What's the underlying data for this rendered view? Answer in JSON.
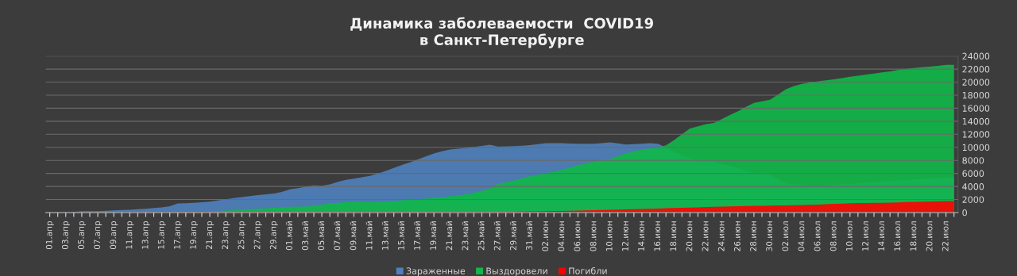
{
  "chart_data": {
    "type": "area",
    "title": "Динамика заболеваемости  COVID19\nв Санкт-Петербурге",
    "categories": [
      "01.апр",
      null,
      "03.апр",
      null,
      "05.апр",
      null,
      "07.апр",
      null,
      "09.апр",
      null,
      "11.апр",
      null,
      "13.апр",
      null,
      "15.апр",
      null,
      "17.апр",
      null,
      "19.апр",
      null,
      "21.апр",
      null,
      "23.апр",
      null,
      "25.апр",
      null,
      "27.апр",
      null,
      "29.апр",
      null,
      "01.май",
      null,
      "03.май",
      null,
      "05.май",
      null,
      "07.май",
      null,
      "09.май",
      null,
      "11.май",
      null,
      "13.май",
      null,
      "15.май",
      null,
      "17.май",
      null,
      "19.май",
      null,
      "21.май",
      null,
      "23.май",
      null,
      "25.май",
      null,
      "27.май",
      null,
      "29.май",
      null,
      "31.май",
      null,
      "02.июн",
      null,
      "04.июн",
      null,
      "06.июн",
      null,
      "08.июн",
      null,
      "10.июн",
      null,
      "12.июн",
      null,
      "14.июн",
      null,
      "16.июн",
      null,
      "18.июн",
      null,
      "20.июн",
      null,
      "22.июн",
      null,
      "24.июн",
      null,
      "26.июн",
      null,
      "28.июн",
      null,
      "30.июн",
      null,
      "02.июл",
      null,
      "04.июл",
      null,
      "06.июл",
      null,
      "08.июл",
      null,
      "10.июл",
      null,
      "12.июл",
      null,
      "14.июл",
      null,
      "16.июл",
      null,
      "18.июл",
      null,
      "20.июл",
      null,
      "22.июл",
      null
    ],
    "series": [
      {
        "name": "Зараженные",
        "color": "#4f81bd",
        "values": [
          20,
          25,
          30,
          100,
          200,
          200,
          200,
          260,
          330,
          380,
          420,
          500,
          580,
          690,
          800,
          960,
          1380,
          1420,
          1500,
          1590,
          1670,
          1850,
          2040,
          2210,
          2380,
          2520,
          2670,
          2800,
          2920,
          3170,
          3540,
          3750,
          3960,
          4170,
          4090,
          4300,
          4710,
          5000,
          5200,
          5400,
          5630,
          6000,
          6380,
          6840,
          7300,
          7700,
          8130,
          8600,
          9050,
          9400,
          9670,
          9800,
          9920,
          10050,
          10200,
          10380,
          10130,
          10150,
          10170,
          10250,
          10340,
          10500,
          10630,
          10630,
          10630,
          10590,
          10550,
          10550,
          10550,
          10650,
          10760,
          10600,
          10420,
          10480,
          10550,
          10630,
          10550,
          10000,
          9360,
          8750,
          8340,
          7850,
          7850,
          7810,
          7400,
          7100,
          6790,
          6400,
          5980,
          5900,
          5780,
          5100,
          4470,
          4270,
          4150,
          4100,
          4070,
          4150,
          4230,
          4290,
          4350,
          4450,
          4560,
          4660,
          4760,
          4820,
          4880,
          4980,
          5090,
          5150,
          5210,
          5290,
          5370,
          5410
        ]
      },
      {
        "name": "Выздоровели",
        "color": "#10b848",
        "values": [
          0,
          0,
          0,
          0,
          0,
          0,
          0,
          0,
          0,
          0,
          0,
          0,
          0,
          0,
          0,
          0,
          20,
          80,
          120,
          160,
          200,
          250,
          290,
          370,
          460,
          520,
          580,
          640,
          710,
          800,
          880,
          900,
          920,
          1040,
          1200,
          1380,
          1500,
          1630,
          1670,
          1670,
          1650,
          1660,
          1670,
          1780,
          1880,
          1960,
          2040,
          2120,
          2210,
          2350,
          2500,
          2650,
          2790,
          3050,
          3340,
          3670,
          4380,
          4650,
          4920,
          5230,
          5550,
          5800,
          6050,
          6300,
          6550,
          6900,
          7300,
          7550,
          7800,
          8000,
          8210,
          8650,
          9090,
          9400,
          9670,
          9820,
          9970,
          10300,
          11100,
          12000,
          12900,
          13220,
          13550,
          13750,
          14360,
          14950,
          15540,
          16200,
          16800,
          17050,
          17290,
          18100,
          18920,
          19400,
          19730,
          19950,
          20140,
          20280,
          20420,
          20620,
          20830,
          20990,
          21150,
          21300,
          21480,
          21650,
          21850,
          22000,
          22170,
          22270,
          22370,
          22500,
          22660,
          22660
        ]
      },
      {
        "name": "Погибли",
        "color": "#ff0000",
        "values": [
          0,
          0,
          0,
          0,
          0,
          0,
          0,
          0,
          0,
          0,
          10,
          15,
          20,
          25,
          30,
          35,
          40,
          45,
          50,
          55,
          60,
          60,
          65,
          65,
          70,
          70,
          75,
          75,
          80,
          80,
          85,
          85,
          90,
          90,
          95,
          95,
          100,
          100,
          100,
          100,
          100,
          100,
          100,
          100,
          100,
          100,
          100,
          100,
          100,
          100,
          100,
          100,
          100,
          100,
          100,
          100,
          100,
          110,
          130,
          150,
          170,
          185,
          200,
          225,
          250,
          275,
          300,
          330,
          360,
          390,
          420,
          450,
          480,
          510,
          540,
          570,
          610,
          650,
          690,
          730,
          770,
          800,
          840,
          870,
          900,
          930,
          960,
          990,
          1020,
          1040,
          1060,
          1080,
          1100,
          1130,
          1160,
          1190,
          1220,
          1270,
          1320,
          1370,
          1420,
          1440,
          1460,
          1480,
          1500,
          1530,
          1560,
          1600,
          1630,
          1660,
          1690,
          1720,
          1750,
          1760
        ]
      }
    ],
    "ylim": [
      0,
      24000
    ],
    "yticks": [
      0,
      2000,
      4000,
      6000,
      8000,
      10000,
      12000,
      14000,
      16000,
      18000,
      20000,
      22000,
      24000
    ],
    "grid": "y",
    "legend": "bottom"
  }
}
